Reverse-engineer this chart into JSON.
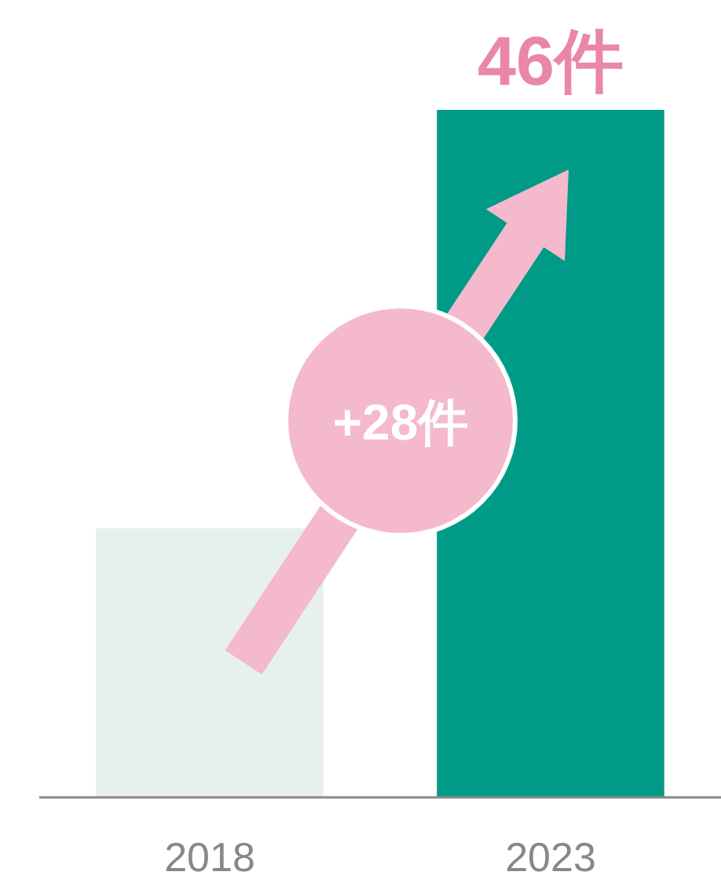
{
  "chart_data": {
    "type": "bar",
    "categories": [
      "2018",
      "2023"
    ],
    "values": [
      18,
      46
    ],
    "colors": [
      "#e6f1ef",
      "#009b87"
    ],
    "value_labels": [
      null,
      "46件"
    ],
    "annotations": [
      "+28件"
    ]
  }
}
